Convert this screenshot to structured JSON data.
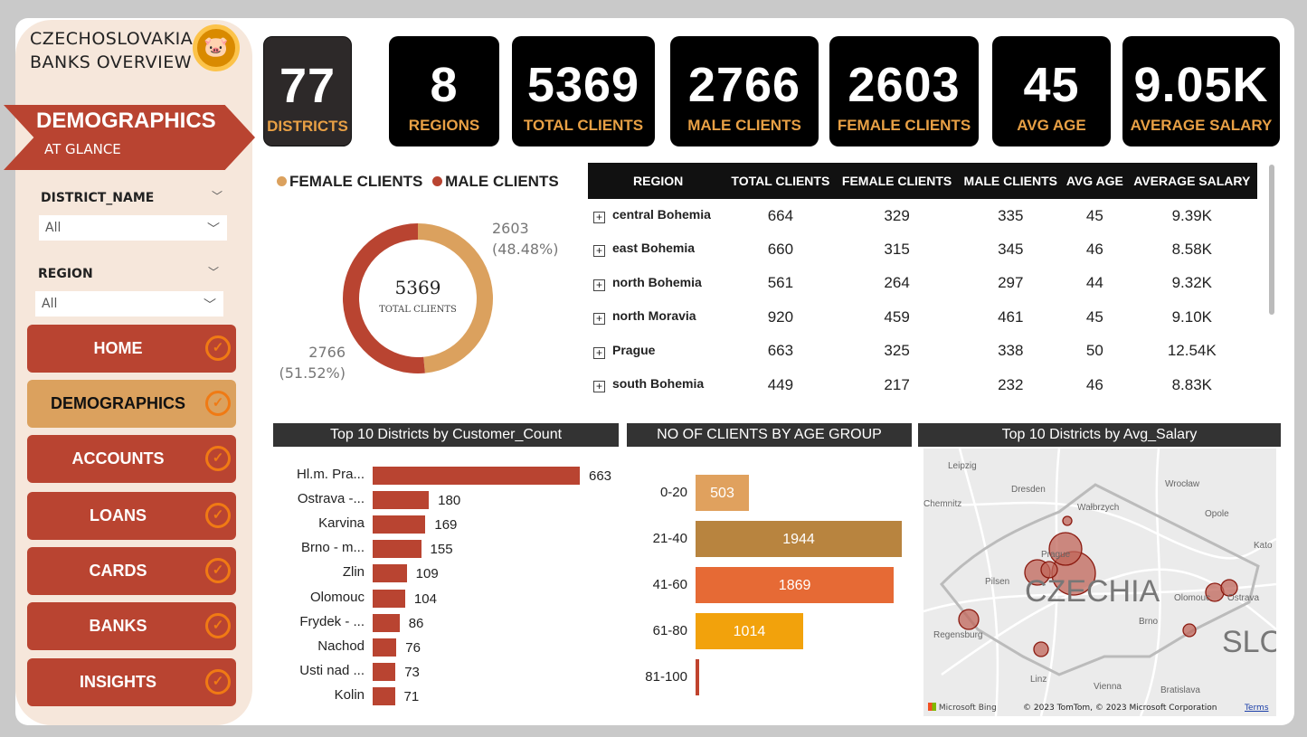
{
  "brand": {
    "line1": "CZECHOSLOVAKIA",
    "line2": "BANKS OVERVIEW",
    "logo_icon": "piggy-bank-icon"
  },
  "banner": {
    "title": "DEMOGRAPHICS",
    "subtitle": "AT GLANCE"
  },
  "filters": [
    {
      "label": "DISTRICT_NAME",
      "value": "All"
    },
    {
      "label": "REGION",
      "value": "All"
    }
  ],
  "nav": [
    {
      "label": "HOME",
      "active": false
    },
    {
      "label": "DEMOGRAPHICS",
      "active": true
    },
    {
      "label": "ACCOUNTS",
      "active": false
    },
    {
      "label": "LOANS",
      "active": false
    },
    {
      "label": "CARDS",
      "active": false
    },
    {
      "label": "BANKS",
      "active": false
    },
    {
      "label": "INSIGHTS",
      "active": false
    }
  ],
  "kpis": [
    {
      "value": "77",
      "label": "DISTRICTS"
    },
    {
      "value": "8",
      "label": "REGIONS"
    },
    {
      "value": "5369",
      "label": "TOTAL CLIENTS"
    },
    {
      "value": "2766",
      "label": "MALE CLIENTS"
    },
    {
      "value": "2603",
      "label": "FEMALE CLIENTS"
    },
    {
      "value": "45",
      "label": "AVG AGE"
    },
    {
      "value": "9.05K",
      "label": "AVERAGE SALARY"
    }
  ],
  "colors": {
    "accent_red": "#b94431",
    "accent_tan": "#dba15e",
    "kpi_label": "#e8a045"
  },
  "chart_data": [
    {
      "type": "pie",
      "donut": true,
      "legend": "top",
      "series": [
        {
          "name": "FEMALE CLIENTS",
          "value": 2603,
          "label": "2603",
          "pct": "(48.48%)",
          "color": "#dba15e"
        },
        {
          "name": "MALE CLIENTS",
          "value": 2766,
          "label": "2766",
          "pct": "(51.52%)",
          "color": "#b94431"
        }
      ],
      "center_value": "5369",
      "center_label": "TOTAL CLIENTS"
    },
    {
      "type": "bar",
      "orientation": "horizontal",
      "title": "Top 10 Districts by Customer_Count",
      "categories": [
        "Hl.m. Pra...",
        "Ostrava -...",
        "Karvina",
        "Brno - m...",
        "Zlin",
        "Olomouc",
        "Frydek - ...",
        "Nachod",
        "Usti nad ...",
        "Kolin"
      ],
      "values": [
        663,
        180,
        169,
        155,
        109,
        104,
        86,
        76,
        73,
        71
      ],
      "color": "#b94431"
    },
    {
      "type": "bar",
      "orientation": "horizontal",
      "title": "NO OF CLIENTS BY AGE GROUP",
      "categories": [
        "0-20",
        "21-40",
        "41-60",
        "61-80",
        "81-100"
      ],
      "values": [
        503,
        1944,
        1869,
        1014,
        29
      ],
      "labels": [
        "503",
        "1944",
        "1869",
        "1014",
        ""
      ],
      "colors": [
        "#e0a15e",
        "#b8843f",
        "#e66a35",
        "#f2a20c",
        "#c0432e"
      ]
    }
  ],
  "table": {
    "columns": [
      "REGION",
      "TOTAL CLIENTS",
      "FEMALE CLIENTS",
      "MALE CLIENTS",
      "AVG AGE",
      "AVERAGE SALARY"
    ],
    "rows": [
      [
        "central Bohemia",
        "664",
        "329",
        "335",
        "45",
        "9.39K"
      ],
      [
        "east Bohemia",
        "660",
        "315",
        "345",
        "46",
        "8.58K"
      ],
      [
        "north Bohemia",
        "561",
        "264",
        "297",
        "44",
        "9.32K"
      ],
      [
        "north Moravia",
        "920",
        "459",
        "461",
        "45",
        "9.10K"
      ],
      [
        "Prague",
        "663",
        "325",
        "338",
        "50",
        "12.54K"
      ],
      [
        "south Bohemia",
        "449",
        "217",
        "232",
        "46",
        "8.83K"
      ]
    ]
  },
  "map": {
    "title": "Top 10 Districts by Avg_Salary",
    "country_label": "CZECHIA",
    "neighbor_label": "SLO",
    "places": [
      "Leipzig",
      "Dresden",
      "Chemnitz",
      "Wrocław",
      "Wałbrzych",
      "Opole",
      "Kato",
      "Prague",
      "Pilsen",
      "Olomouc",
      "Ostrava",
      "Brno",
      "Regensburg",
      "Linz",
      "Vienna",
      "Bratislava"
    ],
    "attribution": "© 2023 TomTom, © 2023 Microsoft Corporation",
    "terms": "Terms",
    "provider": "Microsoft Bing"
  }
}
